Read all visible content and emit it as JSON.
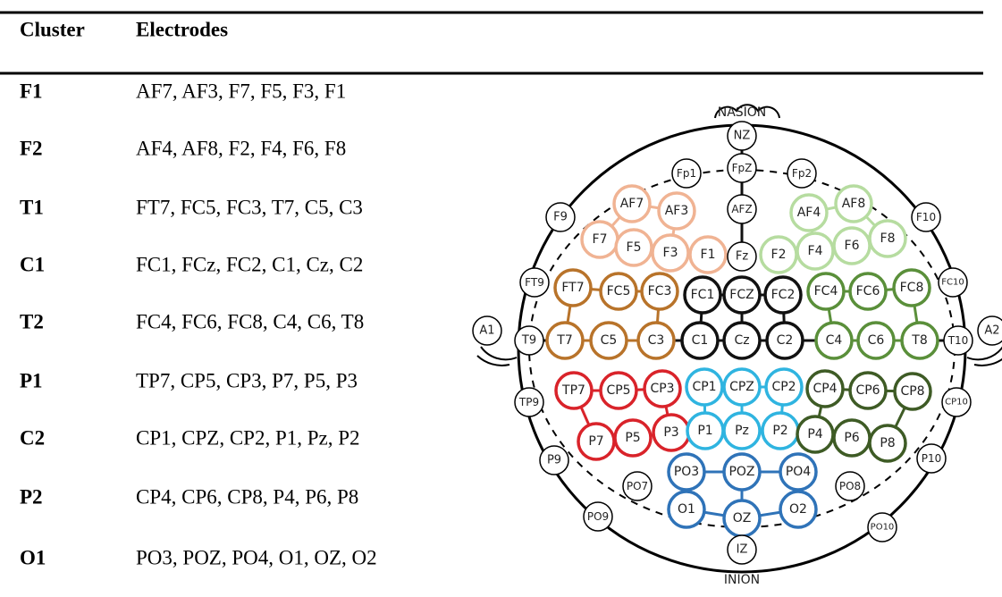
{
  "table": {
    "header": [
      "Cluster",
      "Electrodes"
    ],
    "rows": [
      [
        "F1",
        "AF7, AF3, F7, F5, F3, F1"
      ],
      [
        "F2",
        "AF4, AF8, F2, F4, F6, F8"
      ],
      [
        "T1",
        "FT7, FC5, FC3, T7, C5, C3"
      ],
      [
        "C1",
        "FC1, FCz, FC2, C1, Cz, C2"
      ],
      [
        "T2",
        "FC4, FC6, FC8, C4, C6, T8"
      ],
      [
        "P1",
        "TP7, CP5, CP3, P7, P5, P3"
      ],
      [
        "C2",
        "CP1, CPZ, CP2, P1, Pz, P2"
      ],
      [
        "P2",
        "CP4, CP6, CP8, P4, P6, P8"
      ],
      [
        "O1",
        "PO3, POZ, PO4, O1, OZ, O2"
      ]
    ]
  },
  "diagram": {
    "top_label": "NASION",
    "bottom_label": "INION",
    "electrodes": [
      "NZ",
      "Fp1",
      "FpZ",
      "Fp2",
      "F9",
      "F10",
      "AF7",
      "AF3",
      "AFZ",
      "AF4",
      "AF8",
      "F7",
      "F5",
      "F3",
      "F1",
      "Fz",
      "F2",
      "F4",
      "F6",
      "F8",
      "FT9",
      "FC10",
      "FT7",
      "FC5",
      "FC3",
      "FC1",
      "FCZ",
      "FC2",
      "FC4",
      "FC6",
      "FC8",
      "A1",
      "T9",
      "T7",
      "C5",
      "C3",
      "C1",
      "Cz",
      "C2",
      "C4",
      "C6",
      "T8",
      "T10",
      "A2",
      "TP9",
      "TP7",
      "CP5",
      "CP3",
      "CP1",
      "CPZ",
      "CP2",
      "CP4",
      "CP6",
      "CP8",
      "CP10",
      "P9",
      "P7",
      "P5",
      "P3",
      "P1",
      "Pz",
      "P2",
      "P4",
      "P6",
      "P8",
      "P10",
      "PO7",
      "PO3",
      "POZ",
      "PO4",
      "PO8",
      "PO9",
      "O1",
      "OZ",
      "O2",
      "PO10",
      "IZ"
    ]
  }
}
